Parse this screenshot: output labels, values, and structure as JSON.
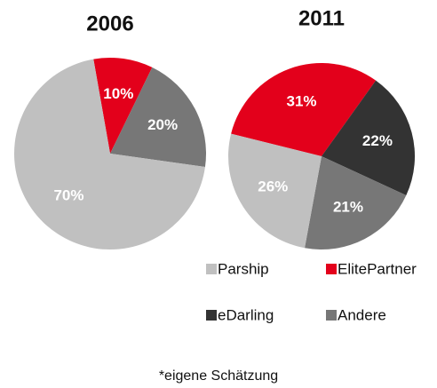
{
  "legend": [
    {
      "name": "Parship",
      "color": "#c0c0c0"
    },
    {
      "name": "ElitePartner",
      "color": "#e3001b"
    },
    {
      "name": "eDarling",
      "color": "#333333"
    },
    {
      "name": "Andere",
      "color": "#777777"
    }
  ],
  "chart_data": [
    {
      "type": "pie",
      "title": "2006",
      "values": [
        70,
        10,
        null,
        20
      ],
      "value_labels": [
        "70%",
        "10%",
        null,
        "20%"
      ]
    },
    {
      "type": "pie",
      "title": "2011",
      "values": [
        26,
        31,
        22,
        21
      ],
      "value_labels": [
        "26%",
        "31%",
        "22%",
        "21%"
      ]
    }
  ],
  "footnote": "*eigene Schätzung"
}
